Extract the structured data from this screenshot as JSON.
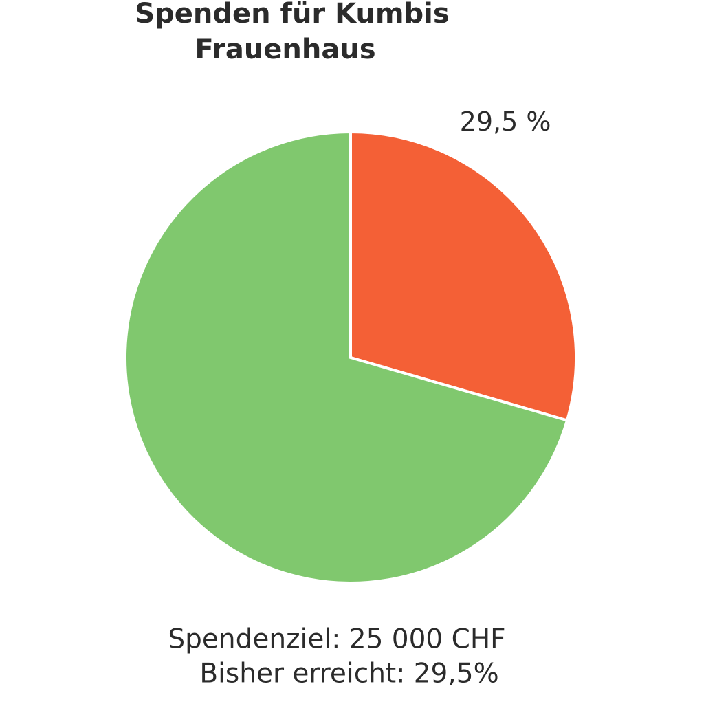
{
  "chart_data": {
    "type": "pie",
    "title_lines": [
      "Spenden für Kumbis",
      "Frauenhaus"
    ],
    "categories": [
      null,
      null
    ],
    "values": [
      29.5,
      70.5
    ],
    "value_labels": [
      "29,5 %",
      null
    ],
    "colors": [
      "#f46036",
      "#80c86e"
    ],
    "annotations": [
      "Spendenziel: 25 000 CHF",
      "Bisher erreicht: 29,5%"
    ]
  }
}
